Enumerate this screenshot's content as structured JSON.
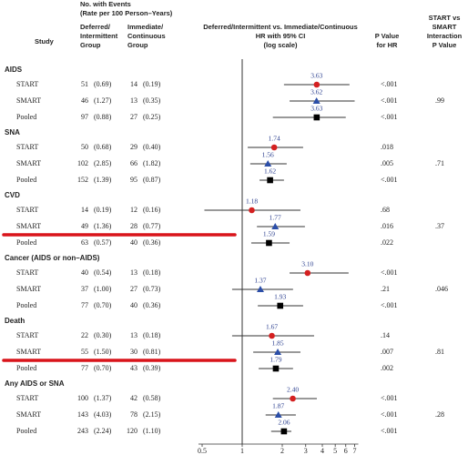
{
  "chart_data": {
    "type": "forest",
    "headers": {
      "events": [
        "No. with Events",
        "(Rate per 100 Person–Years)"
      ],
      "deferred": [
        "Deferred/",
        "Intermittent",
        "Group"
      ],
      "immediate": [
        "Immediate/",
        "Continuous",
        "Group"
      ],
      "study": "Study",
      "hr": [
        "Deferred/Intermittent vs. Immediate/Continuous",
        "HR with 95% CI",
        "(log scale)"
      ],
      "p": [
        "P Value",
        "for HR"
      ],
      "interaction": [
        "START vs",
        "SMART",
        "Interaction",
        "P Value"
      ]
    },
    "log_scale": true,
    "reference_line": 1,
    "xlim": [
      0.5,
      7
    ],
    "xticks": [
      0.5,
      1,
      2,
      3,
      4,
      5,
      6,
      7
    ],
    "groups": [
      {
        "name": "AIDS",
        "interaction_p": ".99",
        "rows": [
          {
            "study": "START",
            "deferred_n": 51,
            "deferred_rate": "(0.69)",
            "immediate_n": 14,
            "immediate_rate": "(0.19)",
            "hr": 3.63,
            "ci_low": 2.06,
            "ci_high": 6.4,
            "p": "<.001",
            "shape": "circle",
            "color": "#d42020"
          },
          {
            "study": "SMART",
            "deferred_n": 46,
            "deferred_rate": "(1.27)",
            "immediate_n": 13,
            "immediate_rate": "(0.35)",
            "hr": 3.62,
            "ci_low": 2.27,
            "ci_high": 7.0,
            "p": "<.001",
            "shape": "triangle",
            "color": "#2b4ea8"
          },
          {
            "study": "Pooled",
            "deferred_n": 97,
            "deferred_rate": "(0.88)",
            "immediate_n": 27,
            "immediate_rate": "(0.25)",
            "hr": 3.63,
            "ci_low": 1.7,
            "ci_high": 6.0,
            "p": "<.001",
            "shape": "square",
            "color": "#000000"
          }
        ]
      },
      {
        "name": "SNA",
        "interaction_p": ".71",
        "rows": [
          {
            "study": "START",
            "deferred_n": 50,
            "deferred_rate": "(0.68)",
            "immediate_n": 29,
            "immediate_rate": "(0.40)",
            "hr": 1.74,
            "ci_low": 1.1,
            "ci_high": 2.87,
            "p": ".018",
            "shape": "circle",
            "color": "#d42020"
          },
          {
            "study": "SMART",
            "deferred_n": 102,
            "deferred_rate": "(2.85)",
            "immediate_n": 66,
            "immediate_rate": "(1.82)",
            "hr": 1.56,
            "ci_low": 1.15,
            "ci_high": 2.16,
            "p": ".005",
            "shape": "triangle",
            "color": "#2b4ea8"
          },
          {
            "study": "Pooled",
            "deferred_n": 152,
            "deferred_rate": "(1.39)",
            "immediate_n": 95,
            "immediate_rate": "(0.87)",
            "hr": 1.62,
            "ci_low": 1.35,
            "ci_high": 2.06,
            "p": "<.001",
            "shape": "square",
            "color": "#000000"
          }
        ]
      },
      {
        "name": "CVD",
        "interaction_p": ".37",
        "rows": [
          {
            "study": "START",
            "deferred_n": 14,
            "deferred_rate": "(0.19)",
            "immediate_n": 12,
            "immediate_rate": "(0.16)",
            "hr": 1.18,
            "ci_low": 0.52,
            "ci_high": 2.74,
            "p": ".68",
            "shape": "circle",
            "color": "#d42020"
          },
          {
            "study": "SMART",
            "deferred_n": 49,
            "deferred_rate": "(1.36)",
            "immediate_n": 28,
            "immediate_rate": "(0.77)",
            "hr": 1.77,
            "ci_low": 1.29,
            "ci_high": 2.96,
            "p": ".016",
            "shape": "triangle",
            "color": "#2b4ea8",
            "highlight": true
          },
          {
            "study": "Pooled",
            "deferred_n": 63,
            "deferred_rate": "(0.57)",
            "immediate_n": 40,
            "immediate_rate": "(0.36)",
            "hr": 1.59,
            "ci_low": 1.17,
            "ci_high": 2.27,
            "p": ".022",
            "shape": "square",
            "color": "#000000"
          }
        ]
      },
      {
        "name": "Cancer (AIDS or non–AIDS)",
        "interaction_p": ".046",
        "rows": [
          {
            "study": "START",
            "deferred_n": 40,
            "deferred_rate": "(0.54)",
            "immediate_n": 13,
            "immediate_rate": "(0.18)",
            "hr": 3.1,
            "hr_label": "3.10",
            "ci_low": 2.27,
            "ci_high": 6.3,
            "p": "<.001",
            "shape": "circle",
            "color": "#d42020"
          },
          {
            "study": "SMART",
            "deferred_n": 37,
            "deferred_rate": "(1.00)",
            "immediate_n": 27,
            "immediate_rate": "(0.73)",
            "hr": 1.37,
            "ci_low": 0.84,
            "ci_high": 2.41,
            "p": ".21",
            "shape": "triangle",
            "color": "#2b4ea8"
          },
          {
            "study": "Pooled",
            "deferred_n": 77,
            "deferred_rate": "(0.70)",
            "immediate_n": 40,
            "immediate_rate": "(0.36)",
            "hr": 1.93,
            "ci_low": 1.31,
            "ci_high": 2.87,
            "p": "<.001",
            "shape": "square",
            "color": "#000000"
          }
        ]
      },
      {
        "name": "Death",
        "interaction_p": ".81",
        "rows": [
          {
            "study": "START",
            "deferred_n": 22,
            "deferred_rate": "(0.30)",
            "immediate_n": 13,
            "immediate_rate": "(0.18)",
            "hr": 1.67,
            "ci_low": 0.84,
            "ci_high": 3.47,
            "p": ".14",
            "shape": "circle",
            "color": "#d42020"
          },
          {
            "study": "SMART",
            "deferred_n": 55,
            "deferred_rate": "(1.50)",
            "immediate_n": 30,
            "immediate_rate": "(0.81)",
            "hr": 1.85,
            "ci_low": 1.21,
            "ci_high": 2.74,
            "p": ".007",
            "shape": "triangle",
            "color": "#2b4ea8",
            "highlight": true
          },
          {
            "study": "Pooled",
            "deferred_n": 77,
            "deferred_rate": "(0.70)",
            "immediate_n": 43,
            "immediate_rate": "(0.39)",
            "hr": 1.79,
            "ci_low": 1.33,
            "ci_high": 2.41,
            "p": ".002",
            "shape": "square",
            "color": "#000000"
          }
        ]
      },
      {
        "name": "Any AIDS or SNA",
        "interaction_p": ".28",
        "rows": [
          {
            "study": "START",
            "deferred_n": 100,
            "deferred_rate": "(1.37)",
            "immediate_n": 42,
            "immediate_rate": "(0.58)",
            "hr": 2.4,
            "hr_label": "2.40",
            "ci_low": 1.7,
            "ci_high": 3.64,
            "p": "<.001",
            "shape": "circle",
            "color": "#d42020"
          },
          {
            "study": "SMART",
            "deferred_n": 143,
            "deferred_rate": "(4.03)",
            "immediate_n": 78,
            "immediate_rate": "(2.15)",
            "hr": 1.87,
            "ci_low": 1.5,
            "ci_high": 2.53,
            "p": "<.001",
            "shape": "triangle",
            "color": "#2b4ea8"
          },
          {
            "study": "Pooled",
            "deferred_n": 243,
            "deferred_rate": "(2.24)",
            "immediate_n": 120,
            "immediate_rate": "(1.10)",
            "hr": 2.06,
            "ci_low": 1.65,
            "ci_high": 2.34,
            "p": "<.001",
            "shape": "square",
            "color": "#000000"
          }
        ]
      }
    ]
  }
}
